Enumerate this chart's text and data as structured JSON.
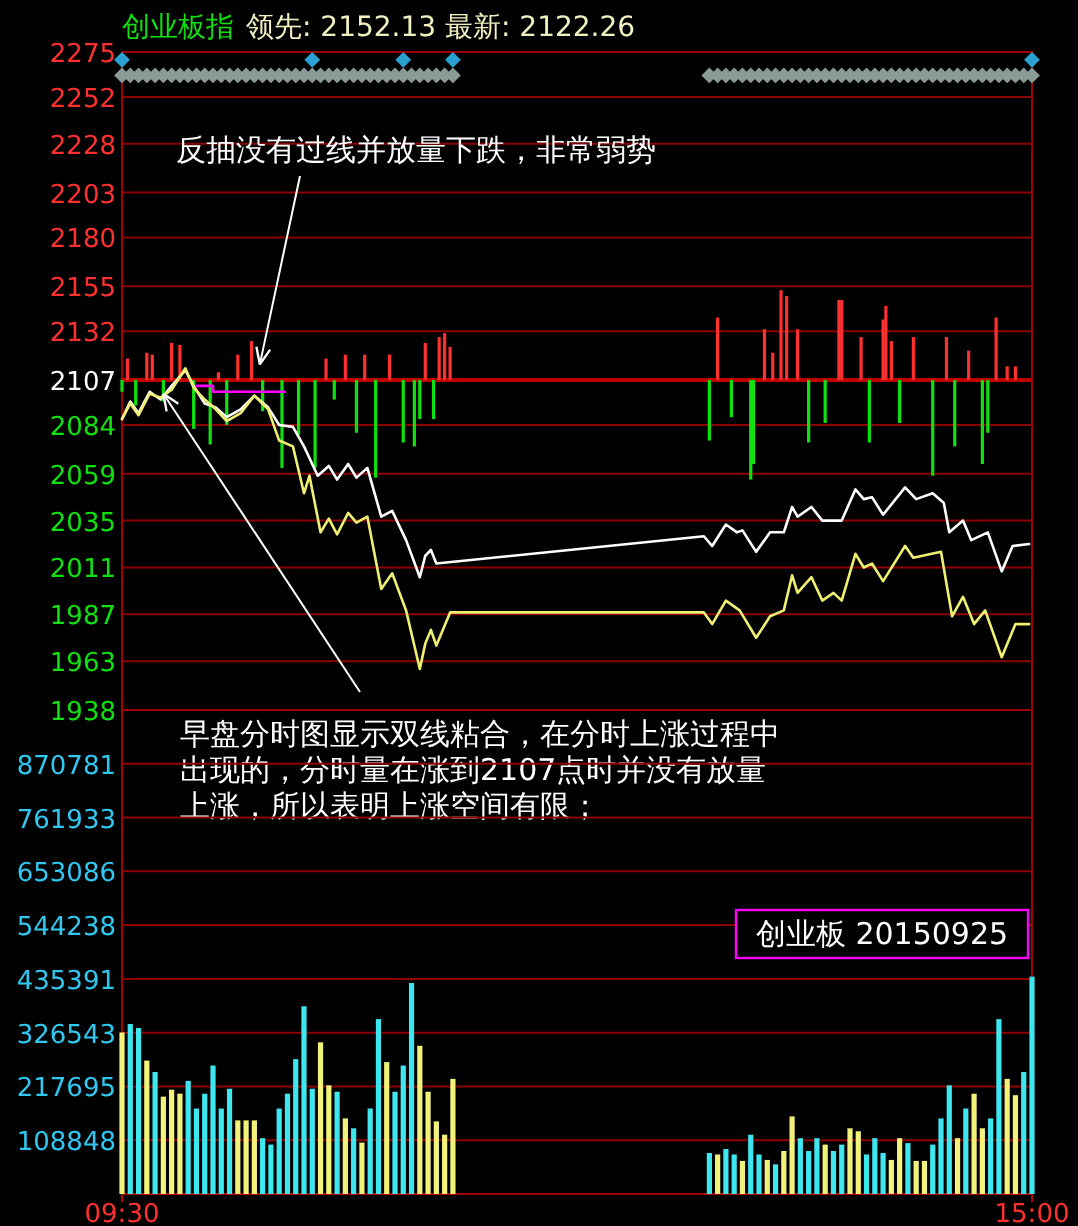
{
  "chart_data": [
    {
      "type": "line",
      "title": "创业板指",
      "subtitle": "领先: 2152.13  最新: 2122.26",
      "xlim": [
        9.5,
        15
      ],
      "ylim": [
        1938,
        2275
      ],
      "yticks": [
        2275,
        2252,
        2228,
        2203,
        2180,
        2155,
        2132,
        2107,
        2084,
        2059,
        2035,
        2011,
        1987,
        1963,
        1938
      ],
      "grid": "y",
      "tick_labels": "y",
      "ref_lines": [
        {
          "axis": "y",
          "value": 2107,
          "color": "#c00000"
        }
      ],
      "annotations": [
        {
          "text": "反抽没有过线并放量下跌，非常弱势",
          "x": 10.333,
          "y": 2115
        },
        {
          "text": "早盘分时图显示双线粘合，在分时上涨过程中出现的，分时量在涨到2107点时并没有放量上涨，所以表明上涨空间有限；",
          "x": 9.75,
          "y": 2100
        }
      ],
      "series": [
        {
          "type": "bar",
          "color": "#ff3030",
          "x": [
            9.533,
            9.65,
            9.683,
            9.8,
            9.85,
            10.083,
            10.2,
            10.283,
            10.733,
            10.85,
            10.967,
            11.117,
            11.333,
            11.417,
            11.45,
            11.483,
            13.1,
            13.383,
            13.433,
            13.483,
            13.517,
            13.583,
            13.833,
            13.85,
            13.967,
            14.1,
            14.117,
            14.15,
            14.283,
            14.483,
            14.617,
            14.783,
            14.85,
            14.9
          ],
          "values": [
            11,
            14,
            13,
            19,
            18,
            4,
            13,
            20,
            11,
            13,
            13,
            13,
            19,
            22,
            24,
            17,
            32,
            26,
            14,
            46,
            43,
            26,
            41,
            41,
            22,
            31,
            38,
            20,
            22,
            22,
            15,
            32,
            7,
            7
          ],
          "base": [
            2107,
            2107,
            2107,
            2107,
            2107,
            2107,
            2107,
            2107,
            2107,
            2107,
            2107,
            2107,
            2107,
            2107,
            2107,
            2107,
            2107,
            2107,
            2107,
            2107,
            2107,
            2107,
            2107,
            2107,
            2107,
            2107,
            2107,
            2107,
            2107,
            2107,
            2107,
            2107,
            2107,
            2107
          ]
        },
        {
          "type": "bar",
          "color": "#10e010",
          "x": [
            9.5,
            9.583,
            9.75,
            9.933,
            10.033,
            10.133,
            10.35,
            10.467,
            10.567,
            10.667,
            10.783,
            10.917,
            11.033,
            11.2,
            11.267,
            11.3,
            11.383,
            13.05,
            13.183,
            13.3,
            13.317,
            13.65,
            13.75,
            14.017,
            14.2,
            14.4,
            14.533,
            14.7,
            14.733
          ],
          "values": [
            -6,
            -13,
            -11,
            -25,
            -33,
            -23,
            -16,
            -45,
            -28,
            -45,
            -10,
            -27,
            -50,
            -32,
            -34,
            -20,
            -20,
            -31,
            -19,
            -51,
            -43,
            -32,
            -22,
            -32,
            -22,
            -49,
            -34,
            -43,
            -27
          ],
          "base": [
            2107,
            2107,
            2107,
            2107,
            2107,
            2107,
            2107,
            2107,
            2107,
            2107,
            2107,
            2107,
            2107,
            2107,
            2107,
            2107,
            2107,
            2107,
            2107,
            2107,
            2107,
            2107,
            2107,
            2107,
            2107,
            2107,
            2107,
            2107,
            2107
          ]
        },
        {
          "color": "#ffffff",
          "x": [
            9.5,
            9.55,
            9.6,
            9.667,
            9.733,
            9.8,
            9.883,
            9.933,
            10,
            10.067,
            10.133,
            10.217,
            10.3,
            10.383,
            10.45,
            10.533,
            10.6,
            10.683,
            10.75,
            10.8,
            10.867,
            10.917,
            10.983,
            11.067,
            11.133,
            11.217,
            11.3,
            11.333,
            11.367,
            11.4,
            13.017,
            13.067,
            13.15,
            13.217,
            13.25,
            13.333,
            13.417,
            13.5,
            13.55,
            13.583,
            13.667,
            13.733,
            13.85,
            13.933,
            13.983,
            14.033,
            14.1,
            14.233,
            14.3,
            14.4,
            14.467,
            14.5,
            14.583,
            14.633,
            14.733,
            14.817,
            14.883,
            14.983
          ],
          "values": [
            2087,
            2096,
            2090,
            2101,
            2097,
            2104,
            2112,
            2104,
            2095,
            2093,
            2088,
            2092,
            2099,
            2093,
            2084,
            2083,
            2073,
            2058,
            2063,
            2056,
            2064,
            2057,
            2062,
            2037,
            2040,
            2025,
            2006,
            2017,
            2020,
            2013,
            2027,
            2022,
            2033,
            2029,
            2030,
            2019,
            2029,
            2029,
            2042,
            2037,
            2042,
            2035,
            2035,
            2051,
            2046,
            2047,
            2038,
            2052,
            2046,
            2049,
            2044,
            2029,
            2035,
            2025,
            2029,
            2009,
            2022,
            2023
          ]
        },
        {
          "color": "#f0f070",
          "x": [
            9.5,
            9.55,
            9.6,
            9.667,
            9.733,
            9.8,
            9.883,
            9.933,
            10,
            10.067,
            10.133,
            10.217,
            10.3,
            10.383,
            10.45,
            10.533,
            10.6,
            10.633,
            10.7,
            10.75,
            10.8,
            10.867,
            10.917,
            10.983,
            11.067,
            11.133,
            11.217,
            11.3,
            11.333,
            11.367,
            11.4,
            11.483,
            13.017,
            13.067,
            13.15,
            13.233,
            13.333,
            13.417,
            13.5,
            13.55,
            13.583,
            13.667,
            13.733,
            13.8,
            13.85,
            13.933,
            13.983,
            14.033,
            14.1,
            14.233,
            14.283,
            14.45,
            14.517,
            14.583,
            14.65,
            14.717,
            14.817,
            14.9,
            14.983
          ],
          "values": [
            2087,
            2095,
            2089,
            2100,
            2098,
            2102,
            2113,
            2103,
            2097,
            2092,
            2086,
            2090,
            2099,
            2092,
            2076,
            2073,
            2049,
            2058,
            2029,
            2036,
            2028,
            2039,
            2034,
            2037,
            2000,
            2008,
            1989,
            1959,
            1972,
            1979,
            1971,
            1988,
            1988,
            1982,
            1994,
            1989,
            1975,
            1986,
            1989,
            2007,
            1998,
            2006,
            1994,
            1998,
            1994,
            2018,
            2011,
            2013,
            2004,
            2022,
            2016,
            2019,
            1986,
            1996,
            1982,
            1989,
            1965,
            1982,
            1982
          ]
        },
        {
          "color": "#ff00ff",
          "x": [
            9.95,
            10.05,
            10.05,
            10.483
          ],
          "values": [
            2104,
            2104,
            2101,
            2101
          ]
        },
        {
          "type": "scatter",
          "marker": "diamond",
          "color": "#8a9a96",
          "x": [
            9.5,
            9.55,
            9.6,
            9.65,
            9.7,
            9.75,
            9.8,
            9.85,
            9.9,
            9.95,
            10,
            10.05,
            10.1,
            10.15,
            10.2,
            10.25,
            10.3,
            10.35,
            10.4,
            10.45,
            10.5,
            10.55,
            10.6,
            10.65,
            10.7,
            10.75,
            10.8,
            10.85,
            10.9,
            10.95,
            11,
            11.05,
            11.1,
            11.15,
            11.2,
            11.25,
            11.3,
            11.35,
            11.4,
            11.45,
            11.5,
            13.05,
            13.1,
            13.15,
            13.2,
            13.25,
            13.3,
            13.35,
            13.4,
            13.45,
            13.5,
            13.55,
            13.6,
            13.65,
            13.7,
            13.75,
            13.8,
            13.85,
            13.9,
            13.95,
            14,
            14.05,
            14.1,
            14.15,
            14.2,
            14.25,
            14.3,
            14.35,
            14.4,
            14.45,
            14.5,
            14.55,
            14.6,
            14.65,
            14.7,
            14.75,
            14.8,
            14.85,
            14.9,
            14.95,
            15
          ],
          "values": [
            2263,
            2263,
            2263,
            2263,
            2263,
            2263,
            2263,
            2263,
            2263,
            2263,
            2263,
            2263,
            2263,
            2263,
            2263,
            2263,
            2263,
            2263,
            2263,
            2263,
            2263,
            2263,
            2263,
            2263,
            2263,
            2263,
            2263,
            2263,
            2263,
            2263,
            2263,
            2263,
            2263,
            2263,
            2263,
            2263,
            2263,
            2263,
            2263,
            2263,
            2263,
            2263,
            2263,
            2263,
            2263,
            2263,
            2263,
            2263,
            2263,
            2263,
            2263,
            2263,
            2263,
            2263,
            2263,
            2263,
            2263,
            2263,
            2263,
            2263,
            2263,
            2263,
            2263,
            2263,
            2263,
            2263,
            2263,
            2263,
            2263,
            2263,
            2263,
            2263,
            2263,
            2263,
            2263,
            2263,
            2263,
            2263,
            2263,
            2263,
            2263
          ]
        },
        {
          "type": "scatter",
          "marker": "diamond",
          "color": "#2aa0d0",
          "x": [
            9.5,
            10.65,
            11.2,
            11.5,
            15
          ],
          "values": [
            2271,
            2271,
            2271,
            2271,
            2271
          ]
        }
      ]
    },
    {
      "type": "bar",
      "xlim": [
        9.5,
        15
      ],
      "xticks": [
        {
          "value": 9.5,
          "label": "09:30"
        },
        {
          "value": 15,
          "label": "15:00"
        }
      ],
      "ylim": [
        0,
        979629
      ],
      "yticks": [
        108848,
        217695,
        326543,
        435391,
        544238,
        653086,
        761933,
        870781
      ],
      "grid": "y",
      "annotations": [
        "创业板 20150925"
      ],
      "x": [
        9.5,
        9.55,
        9.6,
        9.65,
        9.7,
        9.75,
        9.8,
        9.85,
        9.9,
        9.95,
        10,
        10.05,
        10.1,
        10.15,
        10.2,
        10.25,
        10.3,
        10.35,
        10.4,
        10.45,
        10.5,
        10.55,
        10.6,
        10.65,
        10.7,
        10.75,
        10.8,
        10.85,
        10.9,
        10.95,
        11,
        11.05,
        11.1,
        11.15,
        11.2,
        11.25,
        11.3,
        11.35,
        11.4,
        11.45,
        11.5,
        13.05,
        13.1,
        13.15,
        13.2,
        13.25,
        13.3,
        13.35,
        13.4,
        13.45,
        13.5,
        13.55,
        13.6,
        13.65,
        13.7,
        13.75,
        13.8,
        13.85,
        13.9,
        13.95,
        14,
        14.05,
        14.1,
        14.15,
        14.2,
        14.25,
        14.3,
        14.35,
        14.4,
        14.45,
        14.5,
        14.55,
        14.6,
        14.65,
        14.7,
        14.75,
        14.8,
        14.85,
        14.9,
        14.95,
        15
      ],
      "values": [
        327000,
        344000,
        336000,
        270000,
        247000,
        197000,
        211000,
        203000,
        229000,
        173000,
        203000,
        260000,
        173000,
        213000,
        149000,
        149000,
        149000,
        113000,
        100000,
        173000,
        203000,
        273000,
        380000,
        213000,
        307000,
        220000,
        207000,
        153000,
        133000,
        104000,
        173000,
        354000,
        267000,
        207000,
        260000,
        427000,
        300000,
        207000,
        147000,
        120000,
        233000,
        83000,
        80000,
        91000,
        80000,
        67000,
        120000,
        80000,
        69000,
        60000,
        87000,
        157000,
        113000,
        87000,
        113000,
        100000,
        87000,
        100000,
        133000,
        127000,
        80000,
        113000,
        83000,
        69000,
        113000,
        103000,
        67000,
        67000,
        100000,
        153000,
        220000,
        113000,
        173000,
        203000,
        133000,
        153000,
        354000,
        233000,
        200000,
        247000,
        440000
      ],
      "colors": [
        "#f2f27a",
        "#3ee6f0",
        "#3ee6f0",
        "#f2f27a",
        "#3ee6f0",
        "#f2f27a",
        "#f2f27a",
        "#f2f27a",
        "#3ee6f0",
        "#3ee6f0",
        "#3ee6f0",
        "#3ee6f0",
        "#3ee6f0",
        "#3ee6f0",
        "#f2f27a",
        "#f2f27a",
        "#f2f27a",
        "#3ee6f0",
        "#3ee6f0",
        "#3ee6f0",
        "#3ee6f0",
        "#3ee6f0",
        "#3ee6f0",
        "#3ee6f0",
        "#f2f27a",
        "#f2f27a",
        "#3ee6f0",
        "#f2f27a",
        "#3ee6f0",
        "#f2f27a",
        "#3ee6f0",
        "#3ee6f0",
        "#f2f27a",
        "#3ee6f0",
        "#3ee6f0",
        "#3ee6f0",
        "#f2f27a",
        "#f2f27a",
        "#f2f27a",
        "#f2f27a",
        "#f2f27a",
        "#3ee6f0",
        "#f2f27a",
        "#3ee6f0",
        "#3ee6f0",
        "#f2f27a",
        "#3ee6f0",
        "#3ee6f0",
        "#f2f27a",
        "#3ee6f0",
        "#f2f27a",
        "#f2f27a",
        "#3ee6f0",
        "#3ee6f0",
        "#3ee6f0",
        "#f2f27a",
        "#3ee6f0",
        "#3ee6f0",
        "#f2f27a",
        "#f2f27a",
        "#3ee6f0",
        "#3ee6f0",
        "#3ee6f0",
        "#f2f27a",
        "#f2f27a",
        "#3ee6f0",
        "#f2f27a",
        "#f2f27a",
        "#3ee6f0",
        "#3ee6f0",
        "#3ee6f0",
        "#f2f27a",
        "#3ee6f0",
        "#f2f27a",
        "#f2f27a",
        "#3ee6f0",
        "#3ee6f0",
        "#f2f27a",
        "#f2f27a",
        "#3ee6f0",
        "#3ee6f0"
      ]
    }
  ]
}
